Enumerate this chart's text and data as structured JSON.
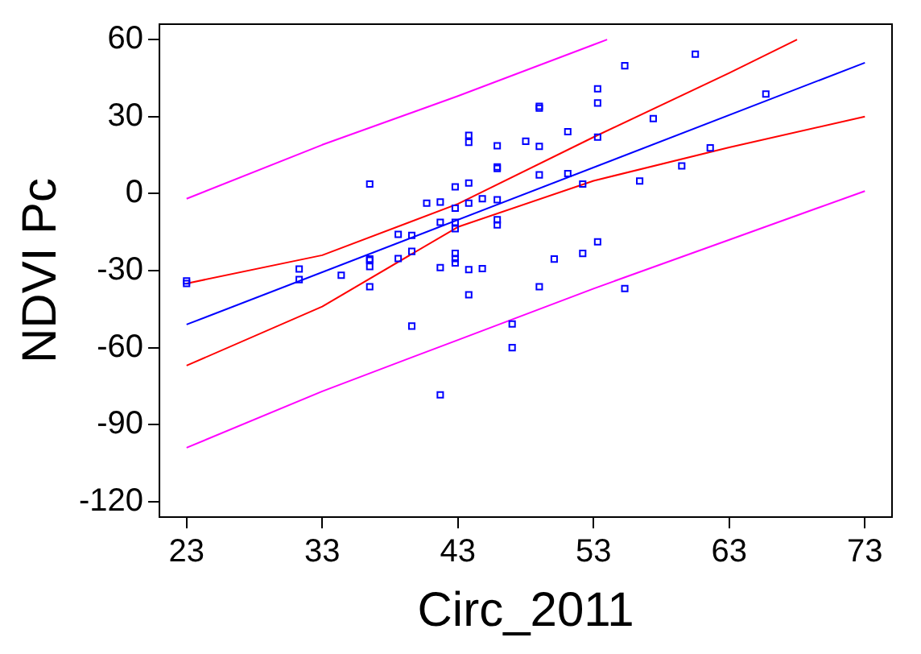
{
  "chart_data": {
    "type": "scatter",
    "xlabel": "Circ_2011",
    "ylabel": "NDVI Pc",
    "xlim": [
      21,
      75
    ],
    "ylim": [
      -126,
      66
    ],
    "xticks": [
      23,
      33,
      43,
      53,
      63,
      73
    ],
    "yticks": [
      -120,
      -90,
      -60,
      -30,
      0,
      30,
      60
    ],
    "grid": false,
    "legend": false,
    "marker": "square",
    "series": [
      {
        "type": "scatter",
        "color": "#0000ff",
        "x": [
          36.5,
          43.8,
          43.8,
          45.9,
          48.0,
          42.8,
          43.8,
          45.9,
          45.9,
          40.7,
          41.7,
          42.8,
          43.8,
          44.8,
          45.9,
          41.7,
          42.8,
          42.8,
          45.9,
          45.9,
          38.6,
          39.6,
          36.5,
          38.6,
          39.6,
          42.8,
          42.8,
          60.5,
          55.3,
          53.3,
          53.3,
          49.0,
          49.0,
          65.7,
          57.4,
          51.1,
          53.3,
          49.0,
          61.6,
          49.0,
          51.1,
          52.2,
          59.5,
          56.4,
          53.3,
          52.2,
          50.1,
          23,
          23,
          31.3,
          31.3,
          34.4,
          36.5,
          36.5,
          36.5,
          41.7,
          42.8,
          43.8,
          44.8,
          43.8,
          39.6,
          41.7,
          47.0,
          47.0,
          49.0,
          55.3
        ],
        "values": [
          3.7,
          22.7,
          20.0,
          18.6,
          20.4,
          2.6,
          4.1,
          9.8,
          10.4,
          -3.7,
          -3.3,
          -5.7,
          -3.7,
          -2.0,
          -2.4,
          -11.2,
          -11.2,
          -13.7,
          -10.2,
          -12.2,
          -15.9,
          -16.3,
          -25.5,
          -25.3,
          -22.5,
          -23.3,
          -25.3,
          54.3,
          49.8,
          40.8,
          35.3,
          33.3,
          34.0,
          38.8,
          29.2,
          24.1,
          22.0,
          18.4,
          17.8,
          7.3,
          7.8,
          3.7,
          10.8,
          4.9,
          -18.8,
          -23.3,
          -25.5,
          -34,
          -35,
          -29.4,
          -33.5,
          -31.8,
          -25.9,
          -28.4,
          -36.3,
          -28.8,
          -27,
          -29.6,
          -29.2,
          -39.4,
          -51.6,
          -78.4,
          -50.8,
          -60.0,
          -36.3,
          -37
        ]
      },
      {
        "type": "line",
        "marker": "none",
        "color": "#0000ff",
        "x": [
          23,
          73
        ],
        "values": [
          -51,
          51
        ]
      },
      {
        "type": "line",
        "marker": "none",
        "color": "#ff0000",
        "x": [
          23,
          33,
          43,
          53,
          63,
          68
        ],
        "values": [
          -35,
          -24,
          -4,
          22,
          47,
          60
        ]
      },
      {
        "type": "line",
        "marker": "none",
        "color": "#ff0000",
        "x": [
          23,
          33,
          43,
          53,
          63,
          73
        ],
        "values": [
          -67,
          -44,
          -13,
          5,
          18,
          30
        ]
      },
      {
        "type": "line",
        "marker": "none",
        "color": "#ff00ff",
        "x": [
          23,
          33,
          43,
          53,
          54
        ],
        "values": [
          -2,
          19,
          38,
          58,
          60
        ]
      },
      {
        "type": "line",
        "marker": "none",
        "color": "#ff00ff",
        "x": [
          23,
          33,
          43,
          53,
          63,
          73
        ],
        "values": [
          -99,
          -77,
          -57,
          -37,
          -18,
          1
        ]
      }
    ]
  }
}
